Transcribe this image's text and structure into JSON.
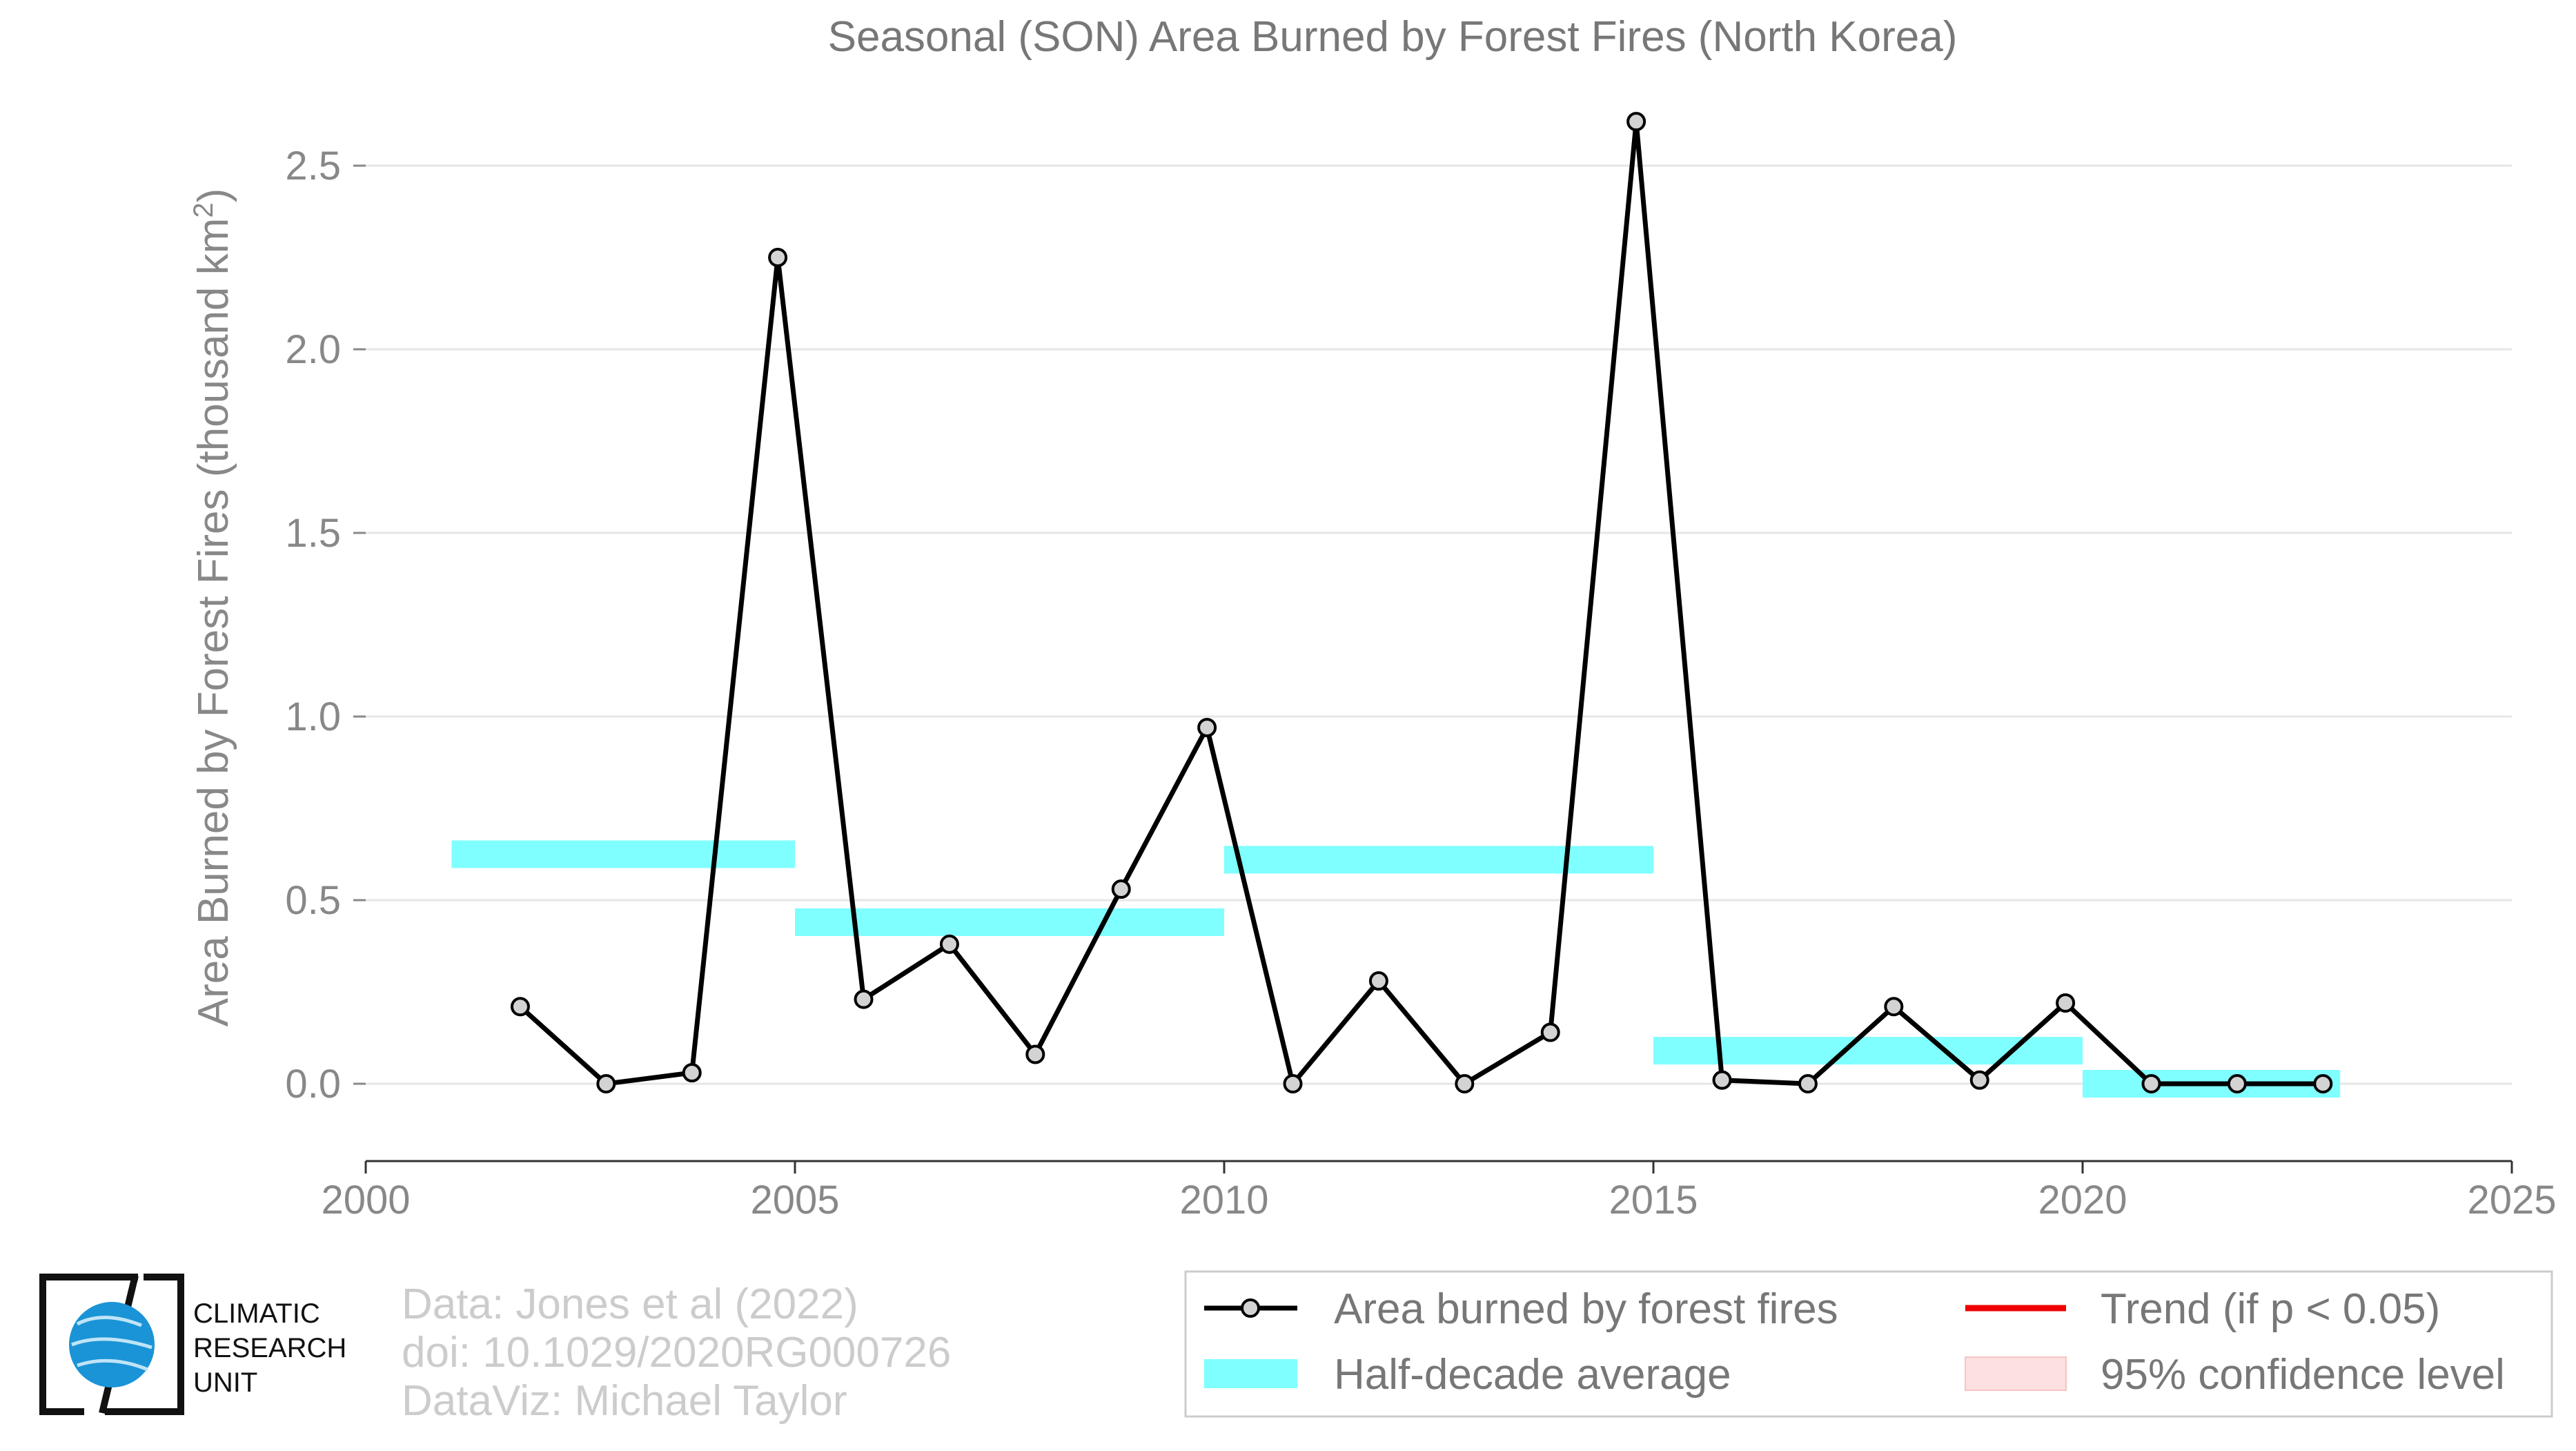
{
  "chart_data": {
    "type": "line",
    "title": "Seasonal (SON) Area Burned by Forest Fires (North Korea)",
    "ylabel_main": "Area Burned by Forest Fires (thousand km",
    "ylabel_sup": "2",
    "ylabel_close": ")",
    "xlabel": "",
    "xlim": [
      2000,
      2025
    ],
    "ylim": [
      -0.2,
      2.7
    ],
    "xticks": [
      2000,
      2005,
      2010,
      2015,
      2020,
      2025
    ],
    "yticks": [
      0.0,
      0.5,
      1.0,
      1.5,
      2.0,
      2.5
    ],
    "ytick_labels": [
      "0.0",
      "0.5",
      "1.0",
      "1.5",
      "2.0",
      "2.5"
    ],
    "grid": true,
    "series": [
      {
        "name": "Area burned by forest fires",
        "color": "#000000",
        "marker_fill": "#d3d3d3",
        "x": [
          2001.8,
          2002.8,
          2003.8,
          2004.8,
          2005.8,
          2006.8,
          2007.8,
          2008.8,
          2009.8,
          2010.8,
          2011.8,
          2012.8,
          2013.8,
          2014.8,
          2015.8,
          2016.8,
          2017.8,
          2018.8,
          2019.8,
          2020.8,
          2021.8,
          2022.8
        ],
        "y": [
          0.21,
          0.0,
          0.03,
          2.25,
          0.23,
          0.38,
          0.08,
          0.53,
          0.97,
          0.0,
          0.28,
          0.0,
          0.14,
          2.62,
          0.01,
          0.0,
          0.21,
          0.01,
          0.22,
          0.0,
          0.0,
          0.0
        ]
      }
    ],
    "half_decade_average": {
      "name": "Half-decade average",
      "color": "#7fffff",
      "segments": [
        {
          "x0": 2001.0,
          "x1": 2005.0,
          "y": 0.625
        },
        {
          "x0": 2005.0,
          "x1": 2010.0,
          "y": 0.44
        },
        {
          "x0": 2010.0,
          "x1": 2015.0,
          "y": 0.61
        },
        {
          "x0": 2015.0,
          "x1": 2020.0,
          "y": 0.09
        },
        {
          "x0": 2020.0,
          "x1": 2023.0,
          "y": 0.0
        }
      ]
    },
    "legend": {
      "position": "bottom-right",
      "items": [
        {
          "label": "Area burned by forest fires",
          "kind": "line-marker",
          "color": "#000000"
        },
        {
          "label": "Half-decade average",
          "kind": "band",
          "color": "#7fffff"
        },
        {
          "label": "Trend (if p < 0.05)",
          "kind": "line",
          "color": "#ee0000"
        },
        {
          "label": "95% confidence level",
          "kind": "band",
          "color": "#fde0e0"
        }
      ]
    }
  },
  "credits": {
    "line1": "Data: Jones et al (2022)",
    "line2": "doi: 10.1029/2020RG000726",
    "line3": "DataViz: Michael Taylor"
  },
  "logo": {
    "line1": "CLIMATIC",
    "line2": "RESEARCH",
    "line3": "UNIT"
  }
}
